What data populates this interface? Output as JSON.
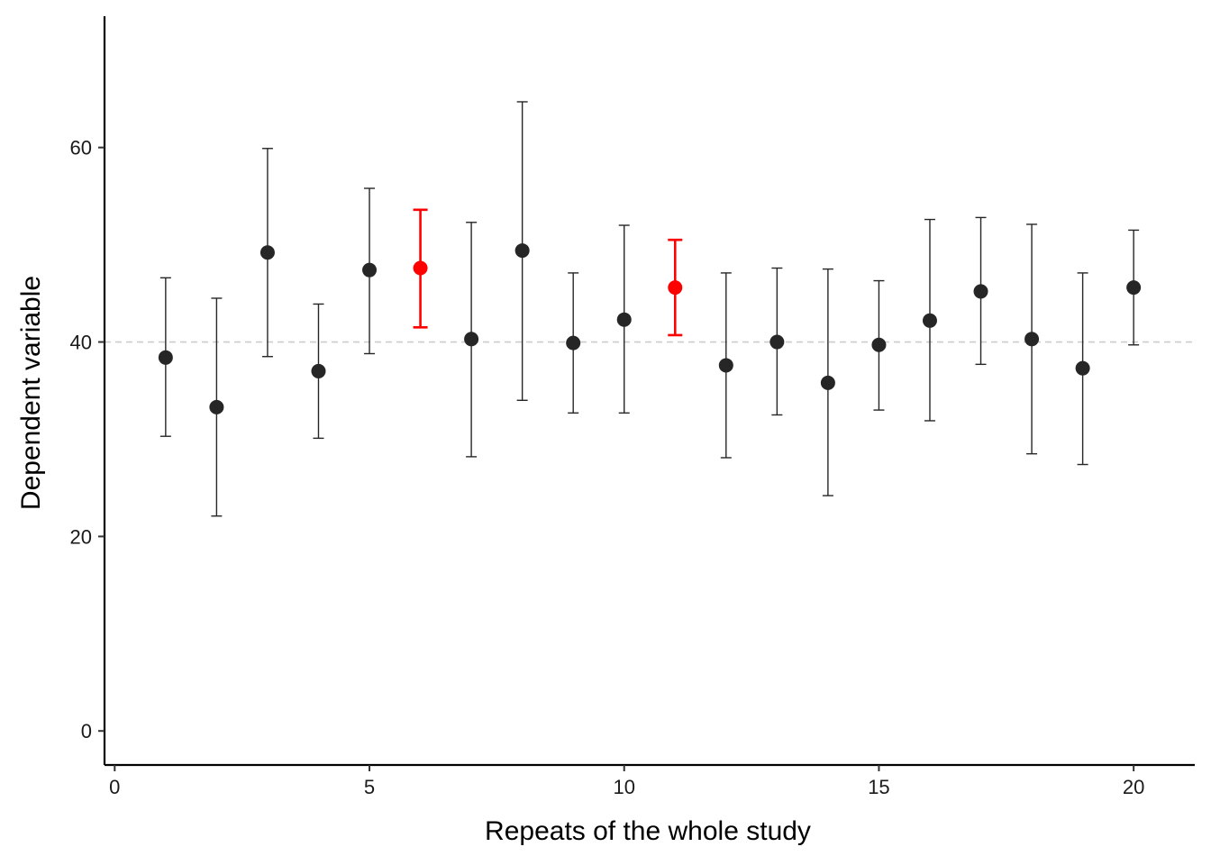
{
  "chart_data": {
    "type": "scatter",
    "xlabel": "Repeats of the whole study",
    "ylabel": "Dependent variable",
    "xlim": [
      -0.2,
      21.2
    ],
    "ylim": [
      -3.5,
      73.5
    ],
    "x_ticks": [
      0,
      5,
      10,
      15,
      20
    ],
    "y_ticks": [
      0,
      20,
      40,
      60
    ],
    "x_tick_labels": [
      "0",
      "5",
      "10",
      "15",
      "20"
    ],
    "y_tick_labels": [
      "0",
      "20",
      "40",
      "60"
    ],
    "reference_line": {
      "y": 40,
      "style": "dashed",
      "color": "#cccccc"
    },
    "grid": false,
    "colors": {
      "default": "#262626",
      "highlight": "#ff0000"
    },
    "points": [
      {
        "x": 1,
        "y": 38.4,
        "lower": 30.3,
        "upper": 46.6,
        "highlight": false
      },
      {
        "x": 2,
        "y": 33.3,
        "lower": 22.1,
        "upper": 44.5,
        "highlight": false
      },
      {
        "x": 3,
        "y": 49.2,
        "lower": 38.5,
        "upper": 59.9,
        "highlight": false
      },
      {
        "x": 4,
        "y": 37.0,
        "lower": 30.1,
        "upper": 43.9,
        "highlight": false
      },
      {
        "x": 5,
        "y": 47.4,
        "lower": 38.8,
        "upper": 55.8,
        "highlight": false
      },
      {
        "x": 6,
        "y": 47.6,
        "lower": 41.5,
        "upper": 53.6,
        "highlight": true
      },
      {
        "x": 7,
        "y": 40.3,
        "lower": 28.2,
        "upper": 52.3,
        "highlight": false
      },
      {
        "x": 8,
        "y": 49.4,
        "lower": 34.0,
        "upper": 64.7,
        "highlight": false
      },
      {
        "x": 9,
        "y": 39.9,
        "lower": 32.7,
        "upper": 47.1,
        "highlight": false
      },
      {
        "x": 10,
        "y": 42.3,
        "lower": 32.7,
        "upper": 52.0,
        "highlight": false
      },
      {
        "x": 11,
        "y": 45.6,
        "lower": 40.7,
        "upper": 50.5,
        "highlight": true
      },
      {
        "x": 12,
        "y": 37.6,
        "lower": 28.1,
        "upper": 47.1,
        "highlight": false
      },
      {
        "x": 13,
        "y": 40.0,
        "lower": 32.5,
        "upper": 47.6,
        "highlight": false
      },
      {
        "x": 14,
        "y": 35.8,
        "lower": 24.2,
        "upper": 47.5,
        "highlight": false
      },
      {
        "x": 15,
        "y": 39.7,
        "lower": 33.0,
        "upper": 46.3,
        "highlight": false
      },
      {
        "x": 16,
        "y": 42.2,
        "lower": 31.9,
        "upper": 52.6,
        "highlight": false
      },
      {
        "x": 17,
        "y": 45.2,
        "lower": 37.7,
        "upper": 52.8,
        "highlight": false
      },
      {
        "x": 18,
        "y": 40.3,
        "lower": 28.5,
        "upper": 52.1,
        "highlight": false
      },
      {
        "x": 19,
        "y": 37.3,
        "lower": 27.4,
        "upper": 47.1,
        "highlight": false
      },
      {
        "x": 20,
        "y": 45.6,
        "lower": 39.7,
        "upper": 51.5,
        "highlight": false
      }
    ]
  }
}
